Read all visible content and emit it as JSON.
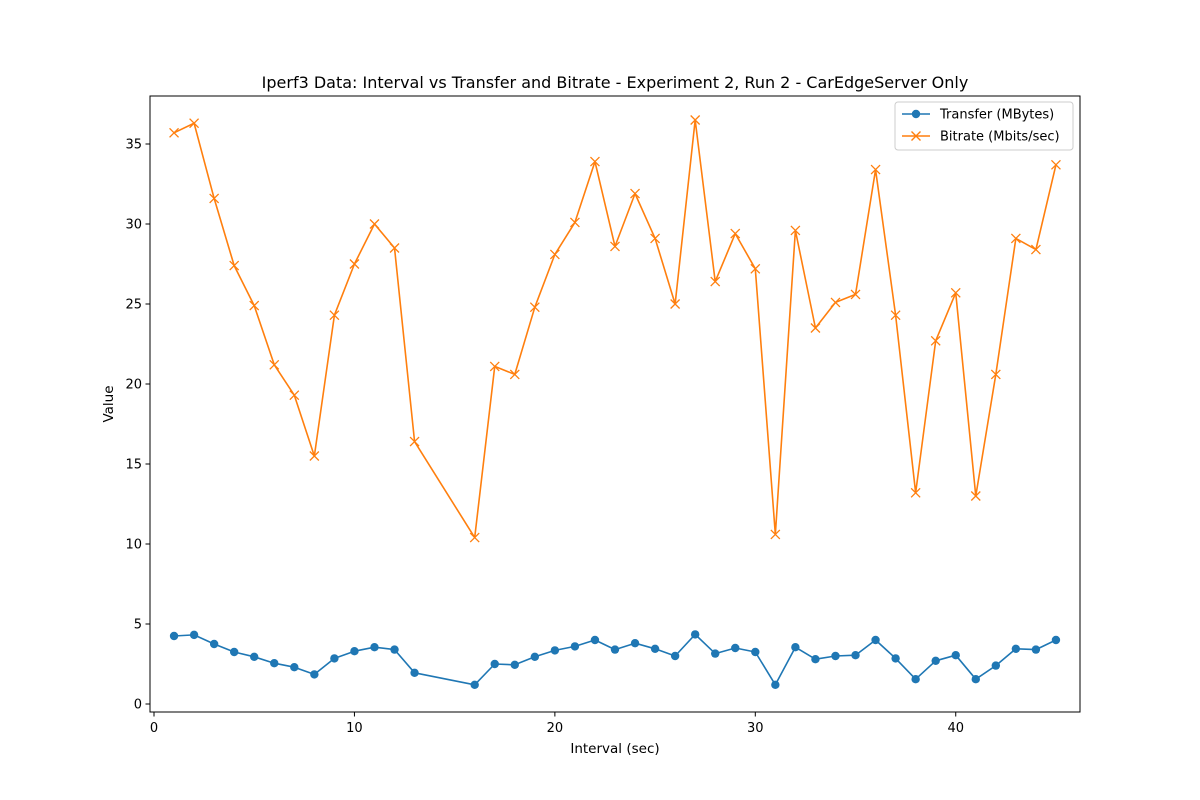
{
  "chart_data": {
    "type": "line",
    "title": "Iperf3 Data: Interval vs Transfer and Bitrate  - Experiment 2, Run 2 - CarEdgeServer Only",
    "xlabel": "Interval (sec)",
    "ylabel": "Value",
    "xlim": [
      -0.2,
      46.2
    ],
    "ylim": [
      -0.5,
      38.0
    ],
    "xticks": [
      0,
      10,
      20,
      30,
      40
    ],
    "yticks": [
      0,
      5,
      10,
      15,
      20,
      25,
      30,
      35
    ],
    "grid": false,
    "legend_position": "top-right",
    "x": [
      1,
      2,
      3,
      4,
      5,
      6,
      7,
      8,
      9,
      10,
      11,
      12,
      13,
      16,
      17,
      18,
      19,
      20,
      21,
      22,
      23,
      24,
      25,
      26,
      27,
      28,
      29,
      30,
      31,
      32,
      33,
      34,
      35,
      36,
      37,
      38,
      39,
      40,
      41,
      42,
      43,
      44,
      45
    ],
    "series": [
      {
        "name": "Transfer (MBytes)",
        "color": "#1f77b4",
        "marker": "circle",
        "values": [
          4.25,
          4.32,
          3.75,
          3.25,
          2.95,
          2.55,
          2.3,
          1.85,
          2.85,
          3.3,
          3.55,
          3.4,
          1.95,
          1.2,
          2.5,
          2.45,
          2.95,
          3.35,
          3.6,
          4.0,
          3.4,
          3.8,
          3.45,
          3.0,
          4.35,
          3.15,
          3.5,
          3.25,
          1.2,
          3.55,
          2.8,
          3.0,
          3.05,
          4.0,
          2.85,
          1.55,
          2.7,
          3.05,
          1.55,
          2.4,
          3.45,
          3.4,
          4.0
        ]
      },
      {
        "name": "Bitrate (Mbits/sec)",
        "color": "#ff7f0e",
        "marker": "x",
        "values": [
          35.7,
          36.3,
          31.6,
          27.4,
          24.9,
          21.2,
          19.3,
          15.5,
          24.3,
          27.5,
          30.0,
          28.5,
          16.4,
          10.4,
          21.1,
          20.6,
          24.8,
          28.1,
          30.1,
          33.9,
          28.6,
          31.9,
          29.1,
          25.0,
          36.5,
          26.4,
          29.4,
          27.2,
          10.6,
          29.6,
          23.5,
          25.1,
          25.6,
          33.4,
          24.3,
          13.2,
          22.7,
          25.7,
          13.0,
          20.6,
          29.1,
          28.4,
          33.7
        ]
      }
    ]
  }
}
